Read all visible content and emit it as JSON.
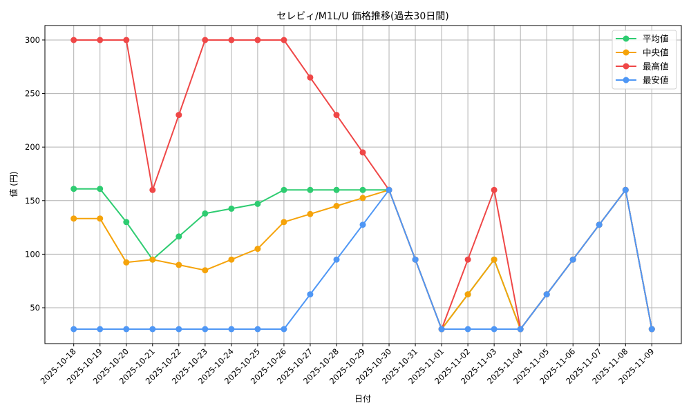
{
  "chart_data": {
    "type": "line",
    "title": "セレビィ/M1L/U 価格推移(過去30日間)",
    "xlabel": "日付",
    "ylabel": "値 (円)",
    "ylim": [
      16.5,
      313.5
    ],
    "yticks": [
      50,
      100,
      150,
      200,
      250,
      300
    ],
    "grid": true,
    "legend_position": "upper right",
    "x": [
      "2025-10-18",
      "2025-10-19",
      "2025-10-20",
      "2025-10-21",
      "2025-10-22",
      "2025-10-23",
      "2025-10-24",
      "2025-10-25",
      "2025-10-26",
      "2025-10-27",
      "2025-10-28",
      "2025-10-29",
      "2025-10-30",
      "2025-10-31",
      "2025-11-01",
      "2025-11-02",
      "2025-11-03",
      "2025-11-04",
      "2025-11-05",
      "2025-11-06",
      "2025-11-07",
      "2025-11-08",
      "2025-11-09"
    ],
    "series": [
      {
        "name": "平均値",
        "color": "#2ecc71",
        "values": [
          161,
          161,
          130,
          95,
          116.5,
          138,
          142.5,
          147,
          160,
          160,
          160,
          160,
          160,
          95,
          30,
          62.5,
          95,
          30,
          62.5,
          95,
          127.5,
          160,
          30
        ]
      },
      {
        "name": "中央値",
        "color": "#f5a30a",
        "values": [
          133.3,
          133.3,
          92.3,
          95,
          90,
          85,
          95,
          105,
          130,
          137.5,
          145,
          152.5,
          160,
          95,
          30,
          62.5,
          95,
          30,
          62.5,
          95,
          127.5,
          160,
          30
        ]
      },
      {
        "name": "最高値",
        "color": "#ef4747",
        "values": [
          300,
          300,
          300,
          160,
          230,
          300,
          300,
          300,
          300,
          265,
          230,
          195,
          160,
          95,
          30,
          95,
          160,
          30,
          62.5,
          95,
          127.5,
          160,
          30
        ]
      },
      {
        "name": "最安値",
        "color": "#4f97f5",
        "values": [
          30,
          30,
          30,
          30,
          30,
          30,
          30,
          30,
          30,
          62.5,
          95,
          127.5,
          160,
          95,
          30,
          30,
          30,
          30,
          62.5,
          95,
          127.5,
          160,
          30
        ]
      }
    ]
  }
}
